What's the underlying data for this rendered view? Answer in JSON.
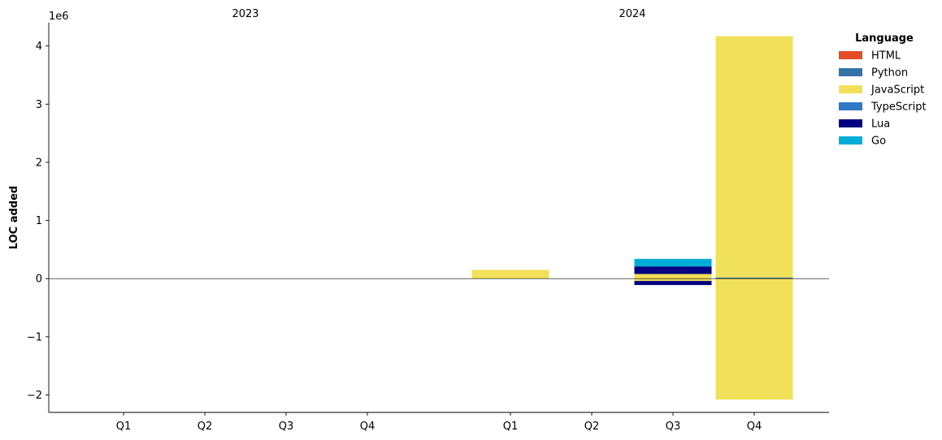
{
  "chart_data": {
    "type": "bar",
    "stacked": true,
    "ylabel": "LOC added",
    "y_offset_label": "1e6",
    "ylim": [
      -2300000,
      4400000
    ],
    "yticks": [
      -2000000,
      -1000000,
      0,
      1000000,
      2000000,
      3000000,
      4000000
    ],
    "ytick_labels": [
      "−2",
      "−1",
      "0",
      "1",
      "2",
      "3",
      "4"
    ],
    "groups": [
      {
        "label": "2023",
        "categories": [
          "Q1",
          "Q2",
          "Q3",
          "Q4"
        ]
      },
      {
        "label": "2024",
        "categories": [
          "Q1",
          "Q2",
          "Q3",
          "Q4"
        ]
      }
    ],
    "legend": {
      "title": "Language",
      "position": "upper-right-outside"
    },
    "series": [
      {
        "name": "HTML",
        "color": "#e34c26",
        "values": [
          0,
          0,
          0,
          0,
          0,
          0,
          0,
          0
        ]
      },
      {
        "name": "Python",
        "color": "#3572A5",
        "values": [
          0,
          0,
          0,
          0,
          0,
          0,
          0,
          20000
        ]
      },
      {
        "name": "JavaScript",
        "color": "#f1e05a",
        "values": [
          0,
          0,
          0,
          0,
          150000,
          0,
          80000,
          4150000
        ],
        "negative_values": [
          0,
          0,
          0,
          0,
          0,
          0,
          -40000,
          -2080000
        ]
      },
      {
        "name": "TypeScript",
        "color": "#3178c6",
        "values": [
          0,
          0,
          0,
          0,
          0,
          0,
          0,
          0
        ]
      },
      {
        "name": "Lua",
        "color": "#000080",
        "values": [
          0,
          0,
          0,
          0,
          0,
          0,
          130000,
          0
        ],
        "negative_values": [
          0,
          0,
          0,
          0,
          0,
          0,
          -70000,
          0
        ]
      },
      {
        "name": "Go",
        "color": "#00ADD8",
        "values": [
          0,
          0,
          0,
          0,
          0,
          0,
          130000,
          0
        ]
      }
    ],
    "grid": false
  }
}
